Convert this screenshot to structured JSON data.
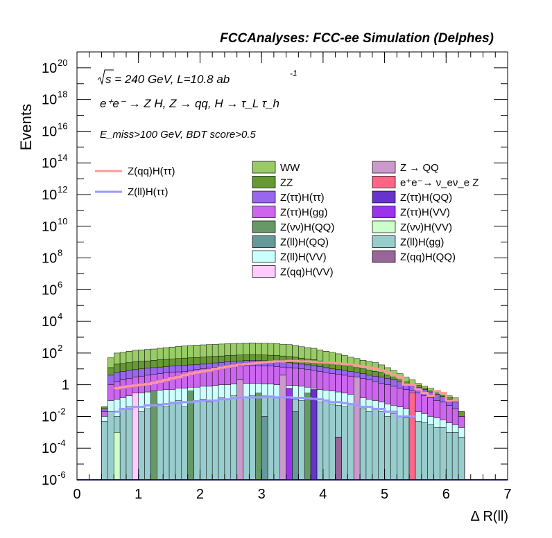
{
  "header": {
    "title": "FCCAnalyses: FCC-ee Simulation (Delphes)",
    "sqrt_s": "s = 240 GeV, L=10.8 ab",
    "lumi_exp": "-1",
    "process": "e⁺e⁻ → Z H, Z → qq, H → τ_L τ_h",
    "cuts": "E_miss>100 GeV, BDT score>0.5"
  },
  "chart_data": {
    "type": "bar",
    "stacked": true,
    "ylog": true,
    "xlabel": "Δ R(ll)",
    "ylabel": "Events",
    "xlim": [
      0,
      7
    ],
    "ylim": [
      1e-06,
      1e+21
    ],
    "x_ticks": [
      "0",
      "1",
      "2",
      "3",
      "4",
      "5",
      "6",
      "7"
    ],
    "y_ticks": [
      {
        "base": "10",
        "exp": "20"
      },
      {
        "base": "10",
        "exp": "18"
      },
      {
        "base": "10",
        "exp": "16"
      },
      {
        "base": "10",
        "exp": "14"
      },
      {
        "base": "10",
        "exp": "12"
      },
      {
        "base": "10",
        "exp": "10"
      },
      {
        "base": "10",
        "exp": "8"
      },
      {
        "base": "10",
        "exp": "6"
      },
      {
        "base": "10",
        "exp": "4"
      },
      {
        "base": "10",
        "exp": "2"
      },
      {
        "base": "1",
        "exp": ""
      },
      {
        "base": "10",
        "exp": "-2"
      },
      {
        "base": "10",
        "exp": "-4"
      },
      {
        "base": "10",
        "exp": "-6"
      }
    ],
    "backgrounds": [
      {
        "name": "WW",
        "color": "#99cc66"
      },
      {
        "name": "ZZ",
        "color": "#669933"
      },
      {
        "name": "Z(ττ)H(ττ)",
        "color": "#9966ee"
      },
      {
        "name": "Z(ττ)H(gg)",
        "color": "#cc66ee"
      },
      {
        "name": "Z(νν)H(QQ)",
        "color": "#669966"
      },
      {
        "name": "Z(ll)H(QQ)",
        "color": "#669999"
      },
      {
        "name": "Z(ll)H(VV)",
        "color": "#ccffff"
      },
      {
        "name": "Z(qq)H(VV)",
        "color": "#ffccff"
      },
      {
        "name": "Z → QQ",
        "color": "#cc99cc"
      },
      {
        "name": "e⁺e⁻→ ν_eν_e Z",
        "color": "#ff6688"
      },
      {
        "name": "Z(ττ)H(QQ)",
        "color": "#6633cc"
      },
      {
        "name": "Z(ττ)H(VV)",
        "color": "#9933ee"
      },
      {
        "name": "Z(νν)H(VV)",
        "color": "#ccffcc"
      },
      {
        "name": "Z(ll)H(gg)",
        "color": "#99cccc"
      },
      {
        "name": "Z(qq)H(QQ)",
        "color": "#996699"
      }
    ],
    "signals": [
      {
        "name": "Z(qq)H(ττ)",
        "color": "#ff9999"
      },
      {
        "name": "Z(ll)H(ττ)",
        "color": "#9999ff"
      }
    ],
    "bin_width": 0.1,
    "x_bins": [
      0.4,
      0.5,
      0.6,
      0.7,
      0.8,
      0.9,
      1.0,
      1.1,
      1.2,
      1.3,
      1.4,
      1.5,
      1.6,
      1.7,
      1.8,
      1.9,
      2.0,
      2.1,
      2.2,
      2.3,
      2.4,
      2.5,
      2.6,
      2.7,
      2.8,
      2.9,
      3.0,
      3.1,
      3.2,
      3.3,
      3.4,
      3.5,
      3.6,
      3.7,
      3.8,
      3.9,
      4.0,
      4.1,
      4.2,
      4.3,
      4.4,
      4.5,
      4.6,
      4.7,
      4.8,
      4.9,
      5.0,
      5.1,
      5.2,
      5.3,
      5.4,
      5.5,
      5.6,
      5.7,
      5.8,
      5.9,
      6.0,
      6.1,
      6.2
    ],
    "total_stack": [
      0.04,
      50,
      100,
      110,
      130,
      150,
      160,
      170,
      180,
      200,
      220,
      240,
      260,
      280,
      300,
      320,
      330,
      340,
      350,
      370,
      390,
      400,
      420,
      430,
      440,
      430,
      420,
      410,
      390,
      360,
      340,
      300,
      250,
      220,
      200,
      160,
      130,
      110,
      90,
      70,
      55,
      45,
      35,
      30,
      25,
      18,
      12,
      8,
      5,
      3,
      2,
      1.2,
      0.8,
      0.6,
      0.4,
      0.3,
      0.2,
      0.15,
      0.02
    ],
    "ww_top_stack": [
      0.04,
      12,
      20,
      22,
      25,
      28,
      30,
      32,
      35,
      38,
      40,
      42,
      45,
      48,
      50,
      52,
      55,
      60,
      62,
      65,
      70,
      72,
      75,
      78,
      80,
      78,
      75,
      72,
      70,
      65,
      60,
      55,
      48,
      42,
      38,
      32,
      28,
      24,
      20,
      18,
      15,
      12,
      10,
      8,
      7,
      6,
      4,
      3,
      2,
      1.5,
      1.1,
      0.9,
      0.6,
      0.4,
      0.3,
      0.2,
      0.15,
      0.1,
      0.02
    ],
    "zz_top_stack": [
      0.03,
      4,
      6,
      7,
      8,
      9,
      10,
      11,
      12,
      13,
      14,
      15,
      16,
      17,
      18,
      19,
      20,
      22,
      24,
      26,
      28,
      30,
      32,
      34,
      35,
      34,
      33,
      31,
      30,
      28,
      25,
      22,
      20,
      18,
      16,
      14,
      12,
      10,
      9,
      8,
      7,
      6,
      5,
      4,
      3.5,
      3,
      2.5,
      2,
      1.5,
      1.1,
      0.9,
      0.7,
      0.5,
      0.35,
      0.25,
      0.18,
      0.12,
      0.08,
      0.01
    ],
    "zqqhtautau": [
      null,
      null,
      0.6,
      0.7,
      0.8,
      0.9,
      1.0,
      1.1,
      1.3,
      1.6,
      2,
      2.5,
      3,
      4,
      5,
      6,
      7,
      8,
      10,
      12,
      14,
      16,
      18,
      20,
      22,
      24,
      26,
      28,
      30,
      30,
      32,
      32,
      30,
      30,
      28,
      26,
      25,
      24,
      22,
      20,
      18,
      16,
      14,
      12,
      10,
      8,
      6,
      4,
      3,
      1,
      1,
      0.5,
      0.3,
      0.2,
      0.4,
      0.3,
      0.1,
      0.1,
      null
    ],
    "zllhtautau": [
      null,
      null,
      0.02,
      0.03,
      0.03,
      0.04,
      0.04,
      0.05,
      0.05,
      0.05,
      0.06,
      0.07,
      0.07,
      0.08,
      0.08,
      0.09,
      0.1,
      0.1,
      0.1,
      0.12,
      0.12,
      0.14,
      0.15,
      0.16,
      0.16,
      0.16,
      0.17,
      0.18,
      0.16,
      0.16,
      0.16,
      0.15,
      0.15,
      0.14,
      0.13,
      0.12,
      0.1,
      0.08,
      0.08,
      0.07,
      0.06,
      0.05,
      0.04,
      0.04,
      0.03,
      0.03,
      0.02,
      0.02,
      0.01,
      0.01,
      0.01,
      null,
      null,
      null,
      null,
      null,
      null,
      null,
      null
    ],
    "mid_layer_tops": [
      0.02,
      1,
      1.5,
      2,
      2.5,
      3,
      3.5,
      4,
      4.5,
      5,
      5.5,
      6,
      6.5,
      7,
      8,
      9,
      10,
      11,
      12,
      13,
      14,
      15,
      15,
      16,
      16,
      16,
      15,
      15,
      14,
      13,
      12,
      11,
      10,
      9,
      8,
      7,
      6,
      5,
      4.5,
      4,
      3.5,
      3,
      2.5,
      2,
      1.5,
      1.2,
      1,
      0.8,
      0.6,
      0.5,
      0.4,
      0.3,
      0.2,
      0.15,
      0.1,
      0.08,
      0.05,
      0.03,
      0.01
    ],
    "lower_layer_tops": [
      0.01,
      0.1,
      0.12,
      0.15,
      0.2,
      0.25,
      0.3,
      0.35,
      0.4,
      0.45,
      0.5,
      0.5,
      0.6,
      0.6,
      0.7,
      0.7,
      0.8,
      0.8,
      0.9,
      1,
      1,
      1.1,
      1.1,
      1.2,
      1.2,
      1.2,
      1.1,
      1.1,
      1,
      1,
      0.9,
      0.9,
      0.8,
      0.7,
      0.6,
      0.5,
      0.45,
      0.4,
      0.35,
      0.3,
      0.25,
      0.2,
      0.15,
      0.12,
      0.1,
      0.08,
      0.06,
      0.05,
      0.04,
      0.03,
      0.025,
      0.02,
      0.015,
      0.01,
      0.008,
      0.006,
      0.004,
      0.003,
      0.002
    ],
    "bottom_layer_tops": [
      0.005,
      0.02,
      0.01,
      0.03,
      0.04,
      0.05,
      0.02,
      0.03,
      0.05,
      0.06,
      0.04,
      0.08,
      0.1,
      0.04,
      0.06,
      0.1,
      0.12,
      0.08,
      0.1,
      0.15,
      0.12,
      0.2,
      0.18,
      0.15,
      0.2,
      0.25,
      0.2,
      0.18,
      0.15,
      0.2,
      0.15,
      0.12,
      0.1,
      0.15,
      0.1,
      0.08,
      0.1,
      0.06,
      0.05,
      0.04,
      0.06,
      0.04,
      0.03,
      0.02,
      0.03,
      0.02,
      0.01,
      0.015,
      0.01,
      0.008,
      0.006,
      0.005,
      0.004,
      0.003,
      0.002,
      0.002,
      0.001,
      0.001,
      0.0005
    ]
  }
}
